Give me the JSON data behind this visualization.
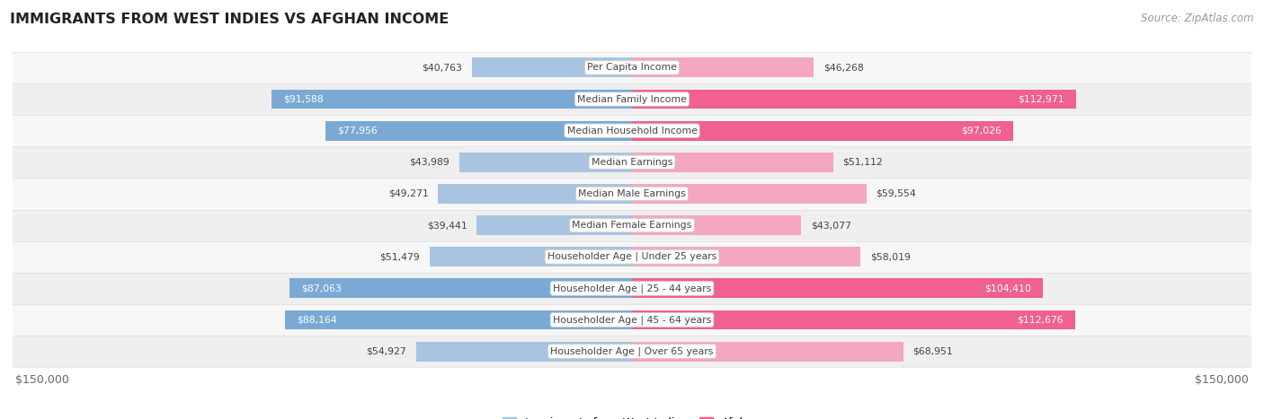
{
  "title": "IMMIGRANTS FROM WEST INDIES VS AFGHAN INCOME",
  "source": "Source: ZipAtlas.com",
  "categories": [
    "Per Capita Income",
    "Median Family Income",
    "Median Household Income",
    "Median Earnings",
    "Median Male Earnings",
    "Median Female Earnings",
    "Householder Age | Under 25 years",
    "Householder Age | 25 - 44 years",
    "Householder Age | 45 - 64 years",
    "Householder Age | Over 65 years"
  ],
  "west_indies_values": [
    40763,
    91588,
    77956,
    43989,
    49271,
    39441,
    51479,
    87063,
    88164,
    54927
  ],
  "afghan_values": [
    46268,
    112971,
    97026,
    51112,
    59554,
    43077,
    58019,
    104410,
    112676,
    68951
  ],
  "west_indies_labels": [
    "$40,763",
    "$91,588",
    "$77,956",
    "$43,989",
    "$49,271",
    "$39,441",
    "$51,479",
    "$87,063",
    "$88,164",
    "$54,927"
  ],
  "afghan_labels": [
    "$46,268",
    "$112,971",
    "$97,026",
    "$51,112",
    "$59,554",
    "$43,077",
    "$58,019",
    "$104,410",
    "$112,676",
    "$68,951"
  ],
  "max_value": 150000,
  "wi_colors": [
    "#a8c4e0",
    "#7aaad4",
    "#7aaad4",
    "#a8c4e0",
    "#a8c4e0",
    "#a8c4e0",
    "#a8c4e0",
    "#7aaad4",
    "#7aaad4",
    "#a8c4e0"
  ],
  "af_colors": [
    "#f4a7bf",
    "#f06090",
    "#f06090",
    "#f4a7bf",
    "#f4a7bf",
    "#f4a7bf",
    "#f4a7bf",
    "#f06090",
    "#f06090",
    "#f4a7bf"
  ],
  "wi_text_colors": [
    "#333333",
    "#ffffff",
    "#ffffff",
    "#333333",
    "#333333",
    "#333333",
    "#333333",
    "#ffffff",
    "#ffffff",
    "#333333"
  ],
  "af_text_colors": [
    "#333333",
    "#ffffff",
    "#ffffff",
    "#333333",
    "#333333",
    "#333333",
    "#333333",
    "#ffffff",
    "#ffffff",
    "#333333"
  ],
  "legend_west_indies": "Immigrants from West Indies",
  "legend_afghan": "Afghan",
  "wi_legend_color": "#a8c4e0",
  "af_legend_color": "#f06090",
  "background_color": "#ffffff",
  "row_colors": [
    "#f7f7f7",
    "#efefef",
    "#f7f7f7",
    "#efefef",
    "#f7f7f7",
    "#efefef",
    "#f7f7f7",
    "#efefef",
    "#f7f7f7",
    "#efefef"
  ]
}
